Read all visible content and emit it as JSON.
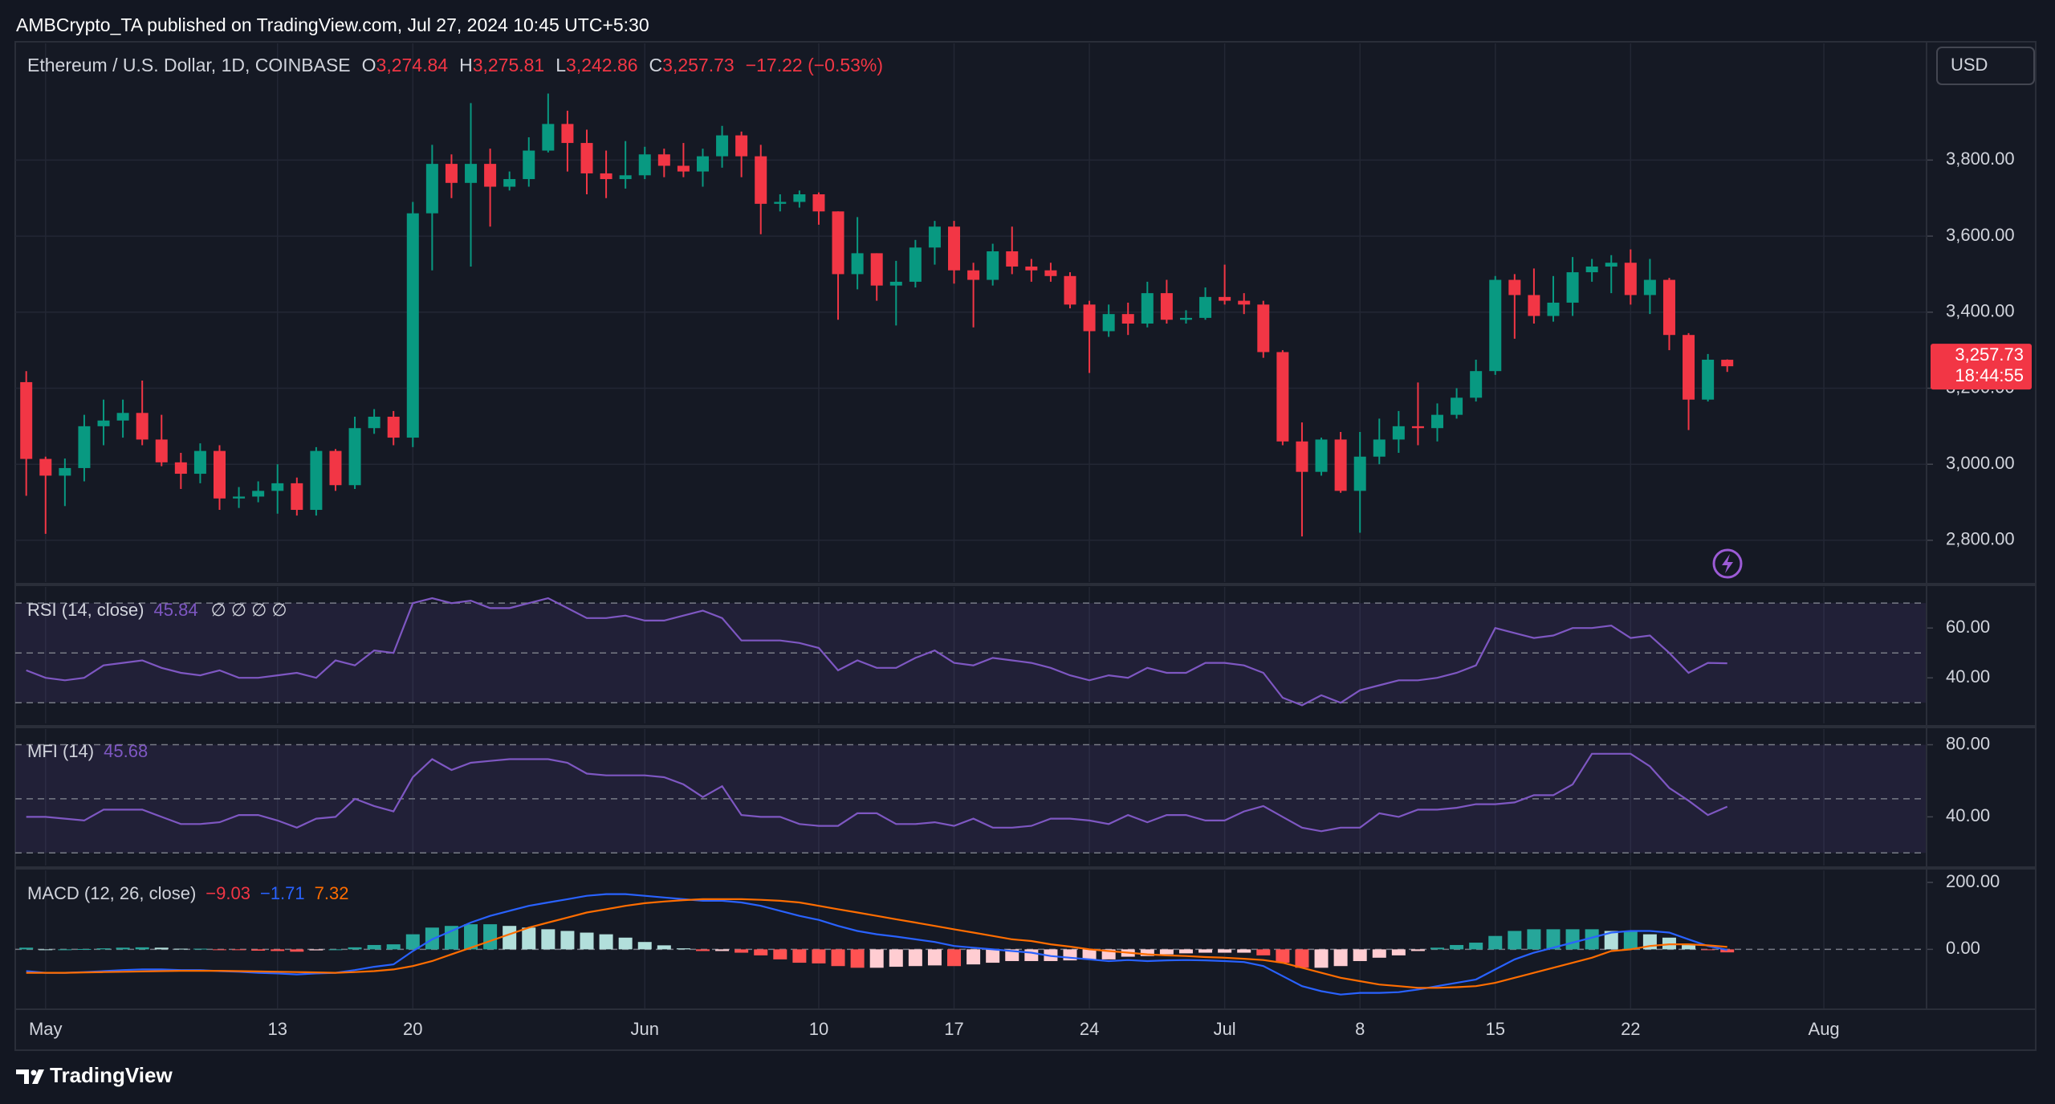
{
  "header": {
    "byline": "AMBCrypto_TA published on TradingView.com, Jul 27, 2024 10:45 UTC+5:30",
    "currency": "USD",
    "footer": "TradingView"
  },
  "chart_data": [
    {
      "type": "candlestick",
      "title": "Ethereum / U.S. Dollar, 1D, COINBASE",
      "ohlc": [
        {
          "label": "O",
          "value": "3,274.84"
        },
        {
          "label": "H",
          "value": "3,275.81"
        },
        {
          "label": "L",
          "value": "3,242.86"
        },
        {
          "label": "C",
          "value": "3,257.73"
        }
      ],
      "change": "−17.22 (−0.53%)",
      "price_label": "3,257.73",
      "countdown": "18:44:55",
      "up_color": "#089981",
      "down_color": "#f23645",
      "x": [
        "04-30",
        "05-01",
        "05-02",
        "05-03",
        "05-04",
        "05-05",
        "05-06",
        "05-07",
        "05-08",
        "05-09",
        "05-10",
        "05-11",
        "05-12",
        "05-13",
        "05-14",
        "05-15",
        "05-16",
        "05-17",
        "05-18",
        "05-19",
        "05-20",
        "05-21",
        "05-22",
        "05-23",
        "05-24",
        "05-25",
        "05-26",
        "05-27",
        "05-28",
        "05-29",
        "05-30",
        "05-31",
        "06-01",
        "06-02",
        "06-03",
        "06-04",
        "06-05",
        "06-06",
        "06-07",
        "06-08",
        "06-09",
        "06-10",
        "06-11",
        "06-12",
        "06-13",
        "06-14",
        "06-15",
        "06-16",
        "06-17",
        "06-18",
        "06-19",
        "06-20",
        "06-21",
        "06-22",
        "06-23",
        "06-24",
        "06-25",
        "06-26",
        "06-27",
        "06-28",
        "06-29",
        "06-30",
        "07-01",
        "07-02",
        "07-03",
        "07-04",
        "07-05",
        "07-06",
        "07-07",
        "07-08",
        "07-09",
        "07-10",
        "07-11",
        "07-12",
        "07-13",
        "07-14",
        "07-15",
        "07-16",
        "07-17",
        "07-18",
        "07-19",
        "07-20",
        "07-21",
        "07-22",
        "07-23",
        "07-24",
        "07-25",
        "07-26",
        "07-27"
      ],
      "open": [
        3216,
        3014,
        2970,
        2990,
        3100,
        3115,
        3135,
        3065,
        3005,
        2975,
        3035,
        2910,
        2915,
        2930,
        2950,
        2880,
        3035,
        2945,
        3095,
        3125,
        3070,
        3660,
        3790,
        3740,
        3790,
        3730,
        3750,
        3825,
        3895,
        3845,
        3765,
        3750,
        3760,
        3815,
        3785,
        3770,
        3810,
        3865,
        3810,
        3685,
        3690,
        3710,
        3665,
        3500,
        3555,
        3470,
        3480,
        3570,
        3625,
        3510,
        3485,
        3560,
        3520,
        3510,
        3495,
        3420,
        3350,
        3395,
        3370,
        3450,
        3380,
        3385,
        3440,
        3430,
        3420,
        3295,
        3060,
        2980,
        3065,
        2930,
        3020,
        3065,
        3100,
        3095,
        3130,
        3175,
        3245,
        3485,
        3445,
        3390,
        3425,
        3505,
        3520,
        3530,
        3445,
        3485,
        3340,
        3170,
        3274.84
      ],
      "high": [
        3245,
        3020,
        3015,
        3130,
        3170,
        3170,
        3220,
        3130,
        3030,
        3055,
        3050,
        2940,
        2955,
        3000,
        2965,
        3045,
        3040,
        3125,
        3145,
        3140,
        3690,
        3840,
        3815,
        3950,
        3830,
        3770,
        3860,
        3975,
        3930,
        3880,
        3825,
        3850,
        3835,
        3830,
        3845,
        3830,
        3890,
        3875,
        3840,
        3710,
        3720,
        3715,
        3665,
        3650,
        3555,
        3535,
        3590,
        3640,
        3640,
        3530,
        3580,
        3625,
        3540,
        3530,
        3505,
        3430,
        3420,
        3425,
        3480,
        3485,
        3405,
        3465,
        3525,
        3450,
        3430,
        3300,
        3110,
        3070,
        3085,
        3085,
        3120,
        3140,
        3215,
        3160,
        3200,
        3275,
        3495,
        3500,
        3515,
        3495,
        3545,
        3540,
        3550,
        3565,
        3540,
        3490,
        3345,
        3290,
        3275.81
      ],
      "low": [
        2917,
        2817,
        2890,
        2955,
        3050,
        3070,
        3050,
        2995,
        2935,
        2950,
        2880,
        2885,
        2900,
        2870,
        2865,
        2865,
        2930,
        2935,
        3080,
        3050,
        3045,
        3510,
        3700,
        3520,
        3625,
        3720,
        3730,
        3820,
        3770,
        3710,
        3700,
        3725,
        3750,
        3755,
        3755,
        3730,
        3780,
        3755,
        3605,
        3665,
        3675,
        3630,
        3380,
        3460,
        3430,
        3365,
        3465,
        3525,
        3475,
        3360,
        3470,
        3500,
        3480,
        3480,
        3410,
        3240,
        3335,
        3340,
        3360,
        3370,
        3370,
        3380,
        3420,
        3395,
        3280,
        3050,
        2810,
        2970,
        2925,
        2820,
        3000,
        3030,
        3050,
        3060,
        3120,
        3165,
        3235,
        3330,
        3370,
        3375,
        3390,
        3480,
        3450,
        3420,
        3395,
        3300,
        3090,
        3165,
        3242.86
      ],
      "close": [
        3014,
        2970,
        2990,
        3100,
        3115,
        3135,
        3065,
        3005,
        2975,
        3035,
        2910,
        2915,
        2930,
        2950,
        2880,
        3035,
        2945,
        3095,
        3125,
        3070,
        3660,
        3790,
        3740,
        3790,
        3730,
        3750,
        3825,
        3895,
        3845,
        3765,
        3750,
        3760,
        3815,
        3785,
        3770,
        3810,
        3865,
        3810,
        3685,
        3690,
        3710,
        3665,
        3500,
        3555,
        3470,
        3480,
        3570,
        3625,
        3510,
        3485,
        3560,
        3520,
        3510,
        3495,
        3420,
        3350,
        3395,
        3370,
        3450,
        3380,
        3385,
        3440,
        3430,
        3420,
        3295,
        3060,
        2980,
        3065,
        2930,
        3020,
        3065,
        3100,
        3095,
        3130,
        3175,
        3245,
        3485,
        3445,
        3390,
        3425,
        3505,
        3520,
        3530,
        3445,
        3485,
        3340,
        3170,
        3275,
        3257.73
      ],
      "xlim": [
        "04-30",
        "08-06"
      ],
      "xticks": [
        {
          "value": "05-01",
          "label": "May"
        },
        {
          "value": "05-13",
          "label": "13"
        },
        {
          "value": "05-20",
          "label": "20"
        },
        {
          "value": "06-01",
          "label": "Jun"
        },
        {
          "value": "06-10",
          "label": "10"
        },
        {
          "value": "06-17",
          "label": "17"
        },
        {
          "value": "06-24",
          "label": "24"
        },
        {
          "value": "07-01",
          "label": "Jul"
        },
        {
          "value": "07-08",
          "label": "8"
        },
        {
          "value": "07-15",
          "label": "15"
        },
        {
          "value": "07-22",
          "label": "22"
        },
        {
          "value": "08-01",
          "label": "Aug"
        }
      ],
      "ylim": [
        2690,
        4107
      ],
      "yticks": [
        {
          "value": 2800,
          "label": "2,800.00"
        },
        {
          "value": 3000,
          "label": "3,000.00"
        },
        {
          "value": 3200,
          "label": "3,200.00"
        },
        {
          "value": 3400,
          "label": "3,400.00"
        },
        {
          "value": 3600,
          "label": "3,600.00"
        },
        {
          "value": 3800,
          "label": "3,800.00"
        }
      ],
      "grid": true
    },
    {
      "type": "line",
      "title": "RSI (14, close)",
      "legend_extra": "∅ ∅ ∅ ∅",
      "band_color": "rgba(126,87,194,0.12)",
      "series": [
        {
          "name": "RSI",
          "color": "#7e57c2",
          "legend_value": "45.84",
          "values": [
            43,
            40,
            39,
            40,
            45,
            46,
            47,
            44,
            42,
            41,
            43,
            40,
            40,
            41,
            42,
            40,
            47,
            45,
            51,
            50,
            70,
            72,
            70,
            71,
            68,
            68,
            70,
            72,
            68,
            64,
            64,
            65,
            63,
            63,
            65,
            67,
            64,
            55,
            55,
            55,
            54,
            52,
            43,
            47,
            44,
            44,
            48,
            51,
            46,
            45,
            48,
            47,
            46,
            44,
            41,
            39,
            41,
            40,
            44,
            42,
            42,
            46,
            46,
            45,
            42,
            32,
            29,
            33,
            30,
            35,
            37,
            39,
            39,
            40,
            42,
            45,
            60,
            58,
            56,
            57,
            60,
            60,
            61,
            56,
            57,
            50,
            42,
            46,
            45.84
          ]
        }
      ],
      "ylim": [
        21.7,
        76.5
      ],
      "yticks": [
        {
          "value": 40,
          "label": "40.00"
        },
        {
          "value": 60,
          "label": "60.00"
        }
      ],
      "bands": [
        30,
        50,
        70
      ]
    },
    {
      "type": "line",
      "title": "MFI (14)",
      "band_color": "rgba(126,87,194,0.12)",
      "series": [
        {
          "name": "MFI",
          "color": "#7e57c2",
          "legend_value": "45.68",
          "values": [
            40,
            40,
            39,
            38,
            44,
            44,
            44,
            40,
            36,
            36,
            37,
            41,
            41,
            38,
            34,
            39,
            40,
            50,
            46,
            43,
            62,
            72,
            66,
            70,
            71,
            72,
            72,
            72,
            70,
            64,
            63,
            63,
            63,
            62,
            58,
            51,
            57,
            41,
            40,
            40,
            36,
            35,
            35,
            42,
            42,
            36,
            36,
            37,
            35,
            39,
            34,
            34,
            35,
            39,
            39,
            38,
            36,
            41,
            37,
            41,
            41,
            38,
            38,
            43,
            46,
            40,
            34,
            32,
            34,
            34,
            42,
            40,
            44,
            44,
            45,
            47,
            47,
            48,
            52,
            52,
            58,
            75,
            75,
            75,
            68,
            56,
            49,
            41,
            45.68
          ]
        }
      ],
      "ylim": [
        13,
        88.7
      ],
      "yticks": [
        {
          "value": 40,
          "label": "40.00"
        },
        {
          "value": 80,
          "label": "80.00"
        }
      ],
      "bands": [
        20,
        50,
        80
      ]
    },
    {
      "type": "macd",
      "title": "MACD (12, 26, close)",
      "histogram": {
        "legend_value": "−9.03",
        "colors": [
          "#26a69a",
          "#b2dfdb",
          "#ffcdd2",
          "#ff5252"
        ],
        "values": [
          5,
          0,
          0,
          1,
          3,
          5,
          6,
          5,
          2,
          2,
          -1,
          -2,
          -4,
          -5,
          -7,
          -3,
          0,
          6,
          13,
          15,
          45,
          65,
          70,
          75,
          75,
          70,
          65,
          60,
          55,
          50,
          45,
          35,
          22,
          12,
          3,
          -5,
          -5,
          -10,
          -18,
          -30,
          -40,
          -42,
          -50,
          -55,
          -55,
          -52,
          -50,
          -48,
          -50,
          -45,
          -40,
          -35,
          -35,
          -35,
          -33,
          -30,
          -30,
          -22,
          -20,
          -15,
          -12,
          -10,
          -10,
          -10,
          -18,
          -40,
          -55,
          -55,
          -50,
          -35,
          -25,
          -18,
          -5,
          5,
          13,
          20,
          40,
          55,
          60,
          60,
          60,
          60,
          55,
          55,
          45,
          35,
          15,
          -2,
          -9.03
        ]
      },
      "series": [
        {
          "name": "MACD",
          "color": "#2962ff",
          "legend_value": "−1.71",
          "values": [
            -65,
            -70,
            -70,
            -68,
            -65,
            -62,
            -60,
            -60,
            -62,
            -62,
            -65,
            -67,
            -70,
            -72,
            -75,
            -72,
            -70,
            -62,
            -52,
            -45,
            -5,
            30,
            55,
            80,
            100,
            115,
            130,
            140,
            150,
            160,
            165,
            165,
            160,
            155,
            150,
            145,
            145,
            140,
            130,
            115,
            100,
            88,
            70,
            55,
            45,
            38,
            30,
            22,
            10,
            5,
            0,
            -5,
            -10,
            -20,
            -25,
            -30,
            -35,
            -32,
            -35,
            -33,
            -32,
            -33,
            -35,
            -38,
            -50,
            -80,
            -110,
            -125,
            -135,
            -130,
            -130,
            -128,
            -120,
            -110,
            -100,
            -90,
            -60,
            -30,
            -10,
            5,
            20,
            35,
            50,
            55,
            55,
            50,
            30,
            10,
            -1.71
          ]
        },
        {
          "name": "Signal",
          "color": "#ff6d00",
          "legend_value": "7.32",
          "values": [
            -70,
            -70,
            -70,
            -69,
            -68,
            -67,
            -66,
            -65,
            -64,
            -64,
            -64,
            -65,
            -66,
            -67,
            -68,
            -69,
            -70,
            -68,
            -65,
            -60,
            -50,
            -35,
            -15,
            5,
            25,
            45,
            65,
            80,
            95,
            110,
            120,
            130,
            138,
            143,
            147,
            150,
            150,
            150,
            148,
            145,
            140,
            130,
            120,
            110,
            100,
            90,
            80,
            70,
            60,
            50,
            40,
            30,
            25,
            15,
            8,
            0,
            -5,
            -10,
            -15,
            -18,
            -20,
            -23,
            -25,
            -28,
            -32,
            -40,
            -55,
            -70,
            -85,
            -95,
            -105,
            -110,
            -115,
            -115,
            -113,
            -110,
            -100,
            -85,
            -70,
            -55,
            -40,
            -25,
            -5,
            0,
            10,
            15,
            15,
            12,
            7.32
          ]
        }
      ],
      "ylim": [
        -179,
        236
      ],
      "yticks": [
        {
          "value": 0,
          "label": "0.00"
        },
        {
          "value": 200,
          "label": "200.00"
        }
      ],
      "bands": [
        0
      ]
    }
  ]
}
